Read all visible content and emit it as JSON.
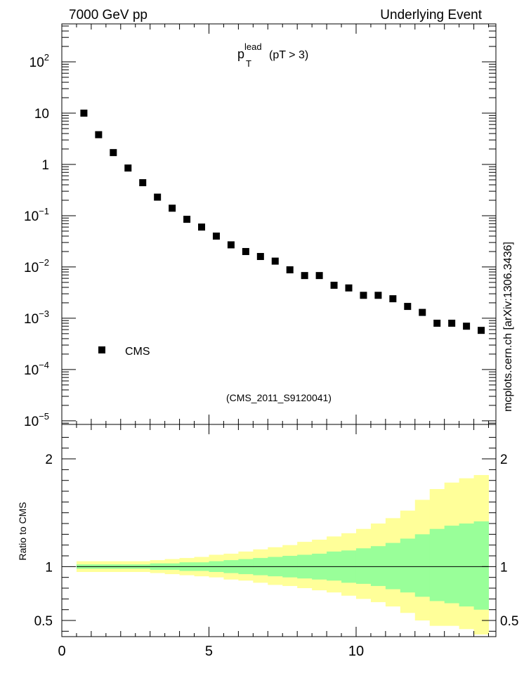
{
  "header": {
    "left": "7000 GeV pp",
    "right": "Underlying Event"
  },
  "plot_title": {
    "main": "p",
    "sup": "lead",
    "sub": "T",
    "rest": "(pT >  3)"
  },
  "analysis_id": "(CMS_2011_S9120041)",
  "side_label": "mcplots.cern.ch [arXiv:1306.3436]",
  "ratio_ylabel": "Ratio to CMS",
  "colors": {
    "marker": "#000000",
    "band_outer": "#ffff99",
    "band_inner": "#99ff99",
    "analysis_text": "#999999"
  },
  "chart_data": [
    {
      "type": "scatter",
      "yscale": "log",
      "xlim": [
        0,
        14.75
      ],
      "ylim": [
        8.5e-06,
        550
      ],
      "ytick_labels": [
        {
          "v": 100,
          "base": "10",
          "exp": "2"
        },
        {
          "v": 10,
          "base": "10",
          "exp": ""
        },
        {
          "v": 1,
          "base": "1",
          "exp": ""
        },
        {
          "v": 0.1,
          "base": "10",
          "exp": "−1"
        },
        {
          "v": 0.01,
          "base": "10",
          "exp": "−2"
        },
        {
          "v": 0.001,
          "base": "10",
          "exp": "−3"
        },
        {
          "v": 0.0001,
          "base": "10",
          "exp": "−4"
        },
        {
          "v": 1e-05,
          "base": "10",
          "exp": "−5"
        }
      ],
      "legend": {
        "label": "CMS",
        "placement": "bottom-left"
      },
      "series": [
        {
          "name": "CMS",
          "x": [
            0.75,
            1.25,
            1.75,
            2.25,
            2.75,
            3.25,
            3.75,
            4.25,
            4.75,
            5.25,
            5.75,
            6.25,
            6.75,
            7.25,
            7.75,
            8.25,
            8.75,
            9.25,
            9.75,
            10.25,
            10.75,
            11.25,
            11.75,
            12.25,
            12.75,
            13.25,
            13.75,
            14.25
          ],
          "y": [
            10,
            3.8,
            1.7,
            0.85,
            0.44,
            0.23,
            0.14,
            0.085,
            0.06,
            0.04,
            0.027,
            0.02,
            0.016,
            0.013,
            0.0088,
            0.0068,
            0.0068,
            0.0044,
            0.0039,
            0.0028,
            0.0028,
            0.0024,
            0.0017,
            0.0013,
            0.0008,
            0.0008,
            0.0007,
            0.00058
          ]
        }
      ]
    },
    {
      "type": "area",
      "xlim": [
        0,
        14.75
      ],
      "ylim": [
        0.35,
        2.32
      ],
      "xticks": [
        0,
        5,
        10
      ],
      "yticks": [
        0.5,
        1,
        2
      ],
      "reference_line": 1,
      "bin_edges": [
        0.5,
        1.0,
        1.5,
        2.0,
        2.5,
        3.0,
        3.5,
        4.0,
        4.5,
        5.0,
        5.5,
        6.0,
        6.5,
        7.0,
        7.5,
        8.0,
        8.5,
        9.0,
        9.5,
        10.0,
        10.5,
        11.0,
        11.5,
        12.0,
        12.5,
        13.0,
        13.5,
        14.0,
        14.5
      ],
      "outer_band": {
        "lo": [
          0.95,
          0.95,
          0.95,
          0.95,
          0.95,
          0.94,
          0.93,
          0.92,
          0.91,
          0.9,
          0.88,
          0.87,
          0.85,
          0.83,
          0.82,
          0.8,
          0.78,
          0.76,
          0.73,
          0.7,
          0.67,
          0.63,
          0.57,
          0.5,
          0.45,
          0.45,
          0.42,
          0.37
        ],
        "hi": [
          1.05,
          1.05,
          1.05,
          1.05,
          1.05,
          1.06,
          1.07,
          1.08,
          1.09,
          1.11,
          1.12,
          1.14,
          1.16,
          1.18,
          1.2,
          1.23,
          1.25,
          1.28,
          1.31,
          1.35,
          1.4,
          1.45,
          1.52,
          1.62,
          1.72,
          1.78,
          1.82,
          1.85
        ]
      },
      "inner_band": {
        "lo": [
          0.98,
          0.98,
          0.98,
          0.98,
          0.98,
          0.97,
          0.97,
          0.96,
          0.96,
          0.95,
          0.94,
          0.93,
          0.92,
          0.91,
          0.9,
          0.89,
          0.88,
          0.87,
          0.85,
          0.84,
          0.82,
          0.79,
          0.76,
          0.72,
          0.68,
          0.66,
          0.63,
          0.6
        ],
        "hi": [
          1.02,
          1.02,
          1.02,
          1.02,
          1.02,
          1.03,
          1.03,
          1.04,
          1.04,
          1.05,
          1.06,
          1.07,
          1.08,
          1.09,
          1.1,
          1.11,
          1.12,
          1.14,
          1.15,
          1.17,
          1.19,
          1.22,
          1.26,
          1.3,
          1.35,
          1.38,
          1.4,
          1.42
        ]
      }
    }
  ]
}
